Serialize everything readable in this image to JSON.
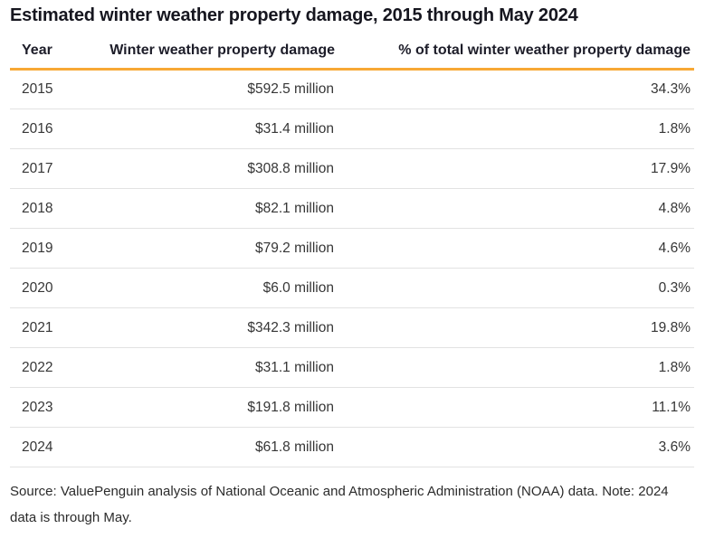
{
  "title": "Estimated winter weather property damage, 2015 through May 2024",
  "table": {
    "columns": {
      "year": "Year",
      "damage": "Winter weather property damage",
      "percent": "% of total winter weather property damage"
    },
    "rows": [
      {
        "year": "2015",
        "damage": "$592.5 million",
        "percent": "34.3%"
      },
      {
        "year": "2016",
        "damage": "$31.4 million",
        "percent": "1.8%"
      },
      {
        "year": "2017",
        "damage": "$308.8 million",
        "percent": "17.9%"
      },
      {
        "year": "2018",
        "damage": "$82.1 million",
        "percent": "4.8%"
      },
      {
        "year": "2019",
        "damage": "$79.2 million",
        "percent": "4.6%"
      },
      {
        "year": "2020",
        "damage": "$6.0 million",
        "percent": "0.3%"
      },
      {
        "year": "2021",
        "damage": "$342.3 million",
        "percent": "19.8%"
      },
      {
        "year": "2022",
        "damage": "$31.1 million",
        "percent": "1.8%"
      },
      {
        "year": "2023",
        "damage": "$191.8 million",
        "percent": "11.1%"
      },
      {
        "year": "2024",
        "damage": "$61.8 million",
        "percent": "3.6%"
      }
    ]
  },
  "footer": {
    "source_note": "Source: ValuePenguin analysis of National Oceanic and Atmospheric Administration (NOAA) data. Note: 2024 data is through May."
  },
  "colors": {
    "accent_rule": "#f7a835",
    "row_divider": "#e2e2e2",
    "title_text": "#16161f",
    "header_text": "#1d1d29",
    "body_text": "#363636",
    "footer_text": "#2b2b2b",
    "background": "#ffffff"
  },
  "chart_data": {
    "type": "table",
    "title": "Estimated winter weather property damage, 2015 through May 2024",
    "columns": [
      "Year",
      "Winter weather property damage",
      "% of total winter weather property damage"
    ],
    "rows": [
      [
        "2015",
        "$592.5 million",
        "34.3%"
      ],
      [
        "2016",
        "$31.4 million",
        "1.8%"
      ],
      [
        "2017",
        "$308.8 million",
        "17.9%"
      ],
      [
        "2018",
        "$82.1 million",
        "4.8%"
      ],
      [
        "2019",
        "$79.2 million",
        "4.6%"
      ],
      [
        "2020",
        "$6.0 million",
        "0.3%"
      ],
      [
        "2021",
        "$342.3 million",
        "19.8%"
      ],
      [
        "2022",
        "$31.1 million",
        "1.8%"
      ],
      [
        "2023",
        "$191.8 million",
        "11.1%"
      ],
      [
        "2024",
        "$61.8 million",
        "3.6%"
      ]
    ],
    "numeric": {
      "years": [
        2015,
        2016,
        2017,
        2018,
        2019,
        2020,
        2021,
        2022,
        2023,
        2024
      ],
      "damage_millions_usd": [
        592.5,
        31.4,
        308.8,
        82.1,
        79.2,
        6.0,
        342.3,
        31.1,
        191.8,
        61.8
      ],
      "pct_of_total": [
        34.3,
        1.8,
        17.9,
        4.8,
        4.6,
        0.3,
        19.8,
        1.8,
        11.1,
        3.6
      ]
    },
    "note": "Source: ValuePenguin analysis of National Oceanic and Atmospheric Administration (NOAA) data. Note: 2024 data is through May."
  }
}
